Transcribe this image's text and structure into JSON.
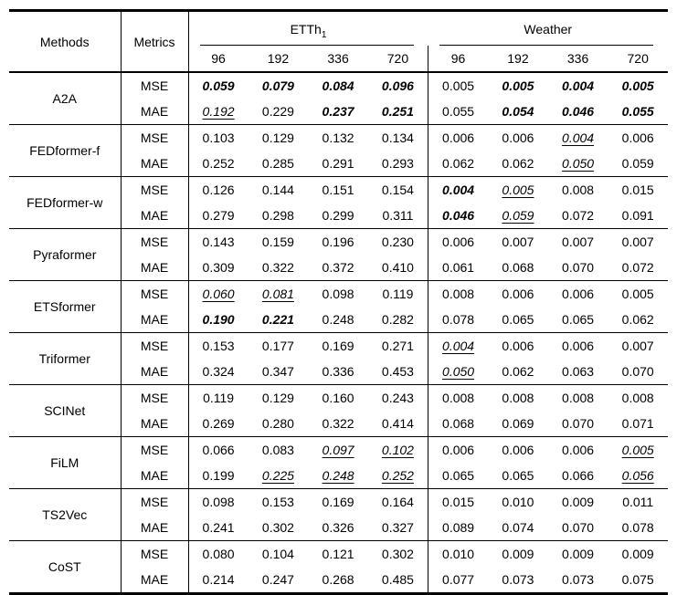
{
  "colors": {
    "background": "#ffffff",
    "text": "#000000",
    "rule": "#000000"
  },
  "value_styles": {
    "b": "bold-italic (best result)",
    "u": "underlined-italic (second best)",
    "": "plain"
  },
  "table": {
    "header": {
      "methods_label": "Methods",
      "metrics_label": "Metrics",
      "groups": [
        {
          "label": "ETTh",
          "subscript": "1",
          "horizons": [
            "96",
            "192",
            "336",
            "720"
          ]
        },
        {
          "label": "Weather",
          "subscript": "",
          "horizons": [
            "96",
            "192",
            "336",
            "720"
          ]
        }
      ]
    },
    "methods": [
      {
        "name": "A2A",
        "rows": [
          {
            "metric": "MSE",
            "values": [
              {
                "v": "0.059",
                "s": "b"
              },
              {
                "v": "0.079",
                "s": "b"
              },
              {
                "v": "0.084",
                "s": "b"
              },
              {
                "v": "0.096",
                "s": "b"
              },
              {
                "v": "0.005",
                "s": ""
              },
              {
                "v": "0.005",
                "s": "b"
              },
              {
                "v": "0.004",
                "s": "b"
              },
              {
                "v": "0.005",
                "s": "b"
              }
            ]
          },
          {
            "metric": "MAE",
            "values": [
              {
                "v": "0.192",
                "s": "u"
              },
              {
                "v": "0.229",
                "s": ""
              },
              {
                "v": "0.237",
                "s": "b"
              },
              {
                "v": "0.251",
                "s": "b"
              },
              {
                "v": "0.055",
                "s": ""
              },
              {
                "v": "0.054",
                "s": "b"
              },
              {
                "v": "0.046",
                "s": "b"
              },
              {
                "v": "0.055",
                "s": "b"
              }
            ]
          }
        ]
      },
      {
        "name": "FEDformer-f",
        "rows": [
          {
            "metric": "MSE",
            "values": [
              {
                "v": "0.103",
                "s": ""
              },
              {
                "v": "0.129",
                "s": ""
              },
              {
                "v": "0.132",
                "s": ""
              },
              {
                "v": "0.134",
                "s": ""
              },
              {
                "v": "0.006",
                "s": ""
              },
              {
                "v": "0.006",
                "s": ""
              },
              {
                "v": "0.004",
                "s": "u"
              },
              {
                "v": "0.006",
                "s": ""
              }
            ]
          },
          {
            "metric": "MAE",
            "values": [
              {
                "v": "0.252",
                "s": ""
              },
              {
                "v": "0.285",
                "s": ""
              },
              {
                "v": "0.291",
                "s": ""
              },
              {
                "v": "0.293",
                "s": ""
              },
              {
                "v": "0.062",
                "s": ""
              },
              {
                "v": "0.062",
                "s": ""
              },
              {
                "v": "0.050",
                "s": "u"
              },
              {
                "v": "0.059",
                "s": ""
              }
            ]
          }
        ]
      },
      {
        "name": "FEDformer-w",
        "rows": [
          {
            "metric": "MSE",
            "values": [
              {
                "v": "0.126",
                "s": ""
              },
              {
                "v": "0.144",
                "s": ""
              },
              {
                "v": "0.151",
                "s": ""
              },
              {
                "v": "0.154",
                "s": ""
              },
              {
                "v": "0.004",
                "s": "b"
              },
              {
                "v": "0.005",
                "s": "u"
              },
              {
                "v": "0.008",
                "s": ""
              },
              {
                "v": "0.015",
                "s": ""
              }
            ]
          },
          {
            "metric": "MAE",
            "values": [
              {
                "v": "0.279",
                "s": ""
              },
              {
                "v": "0.298",
                "s": ""
              },
              {
                "v": "0.299",
                "s": ""
              },
              {
                "v": "0.311",
                "s": ""
              },
              {
                "v": "0.046",
                "s": "b"
              },
              {
                "v": "0.059",
                "s": "u"
              },
              {
                "v": "0.072",
                "s": ""
              },
              {
                "v": "0.091",
                "s": ""
              }
            ]
          }
        ]
      },
      {
        "name": "Pyraformer",
        "rows": [
          {
            "metric": "MSE",
            "values": [
              {
                "v": "0.143",
                "s": ""
              },
              {
                "v": "0.159",
                "s": ""
              },
              {
                "v": "0.196",
                "s": ""
              },
              {
                "v": "0.230",
                "s": ""
              },
              {
                "v": "0.006",
                "s": ""
              },
              {
                "v": "0.007",
                "s": ""
              },
              {
                "v": "0.007",
                "s": ""
              },
              {
                "v": "0.007",
                "s": ""
              }
            ]
          },
          {
            "metric": "MAE",
            "values": [
              {
                "v": "0.309",
                "s": ""
              },
              {
                "v": "0.322",
                "s": ""
              },
              {
                "v": "0.372",
                "s": ""
              },
              {
                "v": "0.410",
                "s": ""
              },
              {
                "v": "0.061",
                "s": ""
              },
              {
                "v": "0.068",
                "s": ""
              },
              {
                "v": "0.070",
                "s": ""
              },
              {
                "v": "0.072",
                "s": ""
              }
            ]
          }
        ]
      },
      {
        "name": "ETSformer",
        "rows": [
          {
            "metric": "MSE",
            "values": [
              {
                "v": "0.060",
                "s": "u"
              },
              {
                "v": "0.081",
                "s": "u"
              },
              {
                "v": "0.098",
                "s": ""
              },
              {
                "v": "0.119",
                "s": ""
              },
              {
                "v": "0.008",
                "s": ""
              },
              {
                "v": "0.006",
                "s": ""
              },
              {
                "v": "0.006",
                "s": ""
              },
              {
                "v": "0.005",
                "s": ""
              }
            ]
          },
          {
            "metric": "MAE",
            "values": [
              {
                "v": "0.190",
                "s": "b"
              },
              {
                "v": "0.221",
                "s": "b"
              },
              {
                "v": "0.248",
                "s": ""
              },
              {
                "v": "0.282",
                "s": ""
              },
              {
                "v": "0.078",
                "s": ""
              },
              {
                "v": "0.065",
                "s": ""
              },
              {
                "v": "0.065",
                "s": ""
              },
              {
                "v": "0.062",
                "s": ""
              }
            ]
          }
        ]
      },
      {
        "name": "Triformer",
        "rows": [
          {
            "metric": "MSE",
            "values": [
              {
                "v": "0.153",
                "s": ""
              },
              {
                "v": "0.177",
                "s": ""
              },
              {
                "v": "0.169",
                "s": ""
              },
              {
                "v": "0.271",
                "s": ""
              },
              {
                "v": "0.004",
                "s": "u"
              },
              {
                "v": "0.006",
                "s": ""
              },
              {
                "v": "0.006",
                "s": ""
              },
              {
                "v": "0.007",
                "s": ""
              }
            ]
          },
          {
            "metric": "MAE",
            "values": [
              {
                "v": "0.324",
                "s": ""
              },
              {
                "v": "0.347",
                "s": ""
              },
              {
                "v": "0.336",
                "s": ""
              },
              {
                "v": "0.453",
                "s": ""
              },
              {
                "v": "0.050",
                "s": "u"
              },
              {
                "v": "0.062",
                "s": ""
              },
              {
                "v": "0.063",
                "s": ""
              },
              {
                "v": "0.070",
                "s": ""
              }
            ]
          }
        ]
      },
      {
        "name": "SCINet",
        "rows": [
          {
            "metric": "MSE",
            "values": [
              {
                "v": "0.119",
                "s": ""
              },
              {
                "v": "0.129",
                "s": ""
              },
              {
                "v": "0.160",
                "s": ""
              },
              {
                "v": "0.243",
                "s": ""
              },
              {
                "v": "0.008",
                "s": ""
              },
              {
                "v": "0.008",
                "s": ""
              },
              {
                "v": "0.008",
                "s": ""
              },
              {
                "v": "0.008",
                "s": ""
              }
            ]
          },
          {
            "metric": "MAE",
            "values": [
              {
                "v": "0.269",
                "s": ""
              },
              {
                "v": "0.280",
                "s": ""
              },
              {
                "v": "0.322",
                "s": ""
              },
              {
                "v": "0.414",
                "s": ""
              },
              {
                "v": "0.068",
                "s": ""
              },
              {
                "v": "0.069",
                "s": ""
              },
              {
                "v": "0.070",
                "s": ""
              },
              {
                "v": "0.071",
                "s": ""
              }
            ]
          }
        ]
      },
      {
        "name": "FiLM",
        "rows": [
          {
            "metric": "MSE",
            "values": [
              {
                "v": "0.066",
                "s": ""
              },
              {
                "v": "0.083",
                "s": ""
              },
              {
                "v": "0.097",
                "s": "u"
              },
              {
                "v": "0.102",
                "s": "u"
              },
              {
                "v": "0.006",
                "s": ""
              },
              {
                "v": "0.006",
                "s": ""
              },
              {
                "v": "0.006",
                "s": ""
              },
              {
                "v": "0.005",
                "s": "u"
              }
            ]
          },
          {
            "metric": "MAE",
            "values": [
              {
                "v": "0.199",
                "s": ""
              },
              {
                "v": "0.225",
                "s": "u"
              },
              {
                "v": "0.248",
                "s": "u"
              },
              {
                "v": "0.252",
                "s": "u"
              },
              {
                "v": "0.065",
                "s": ""
              },
              {
                "v": "0.065",
                "s": ""
              },
              {
                "v": "0.066",
                "s": ""
              },
              {
                "v": "0.056",
                "s": "u"
              }
            ]
          }
        ]
      },
      {
        "name": "TS2Vec",
        "rows": [
          {
            "metric": "MSE",
            "values": [
              {
                "v": "0.098",
                "s": ""
              },
              {
                "v": "0.153",
                "s": ""
              },
              {
                "v": "0.169",
                "s": ""
              },
              {
                "v": "0.164",
                "s": ""
              },
              {
                "v": "0.015",
                "s": ""
              },
              {
                "v": "0.010",
                "s": ""
              },
              {
                "v": "0.009",
                "s": ""
              },
              {
                "v": "0.011",
                "s": ""
              }
            ]
          },
          {
            "metric": "MAE",
            "values": [
              {
                "v": "0.241",
                "s": ""
              },
              {
                "v": "0.302",
                "s": ""
              },
              {
                "v": "0.326",
                "s": ""
              },
              {
                "v": "0.327",
                "s": ""
              },
              {
                "v": "0.089",
                "s": ""
              },
              {
                "v": "0.074",
                "s": ""
              },
              {
                "v": "0.070",
                "s": ""
              },
              {
                "v": "0.078",
                "s": ""
              }
            ]
          }
        ]
      },
      {
        "name": "CoST",
        "rows": [
          {
            "metric": "MSE",
            "values": [
              {
                "v": "0.080",
                "s": ""
              },
              {
                "v": "0.104",
                "s": ""
              },
              {
                "v": "0.121",
                "s": ""
              },
              {
                "v": "0.302",
                "s": ""
              },
              {
                "v": "0.010",
                "s": ""
              },
              {
                "v": "0.009",
                "s": ""
              },
              {
                "v": "0.009",
                "s": ""
              },
              {
                "v": "0.009",
                "s": ""
              }
            ]
          },
          {
            "metric": "MAE",
            "values": [
              {
                "v": "0.214",
                "s": ""
              },
              {
                "v": "0.247",
                "s": ""
              },
              {
                "v": "0.268",
                "s": ""
              },
              {
                "v": "0.485",
                "s": ""
              },
              {
                "v": "0.077",
                "s": ""
              },
              {
                "v": "0.073",
                "s": ""
              },
              {
                "v": "0.073",
                "s": ""
              },
              {
                "v": "0.075",
                "s": ""
              }
            ]
          }
        ]
      }
    ]
  }
}
